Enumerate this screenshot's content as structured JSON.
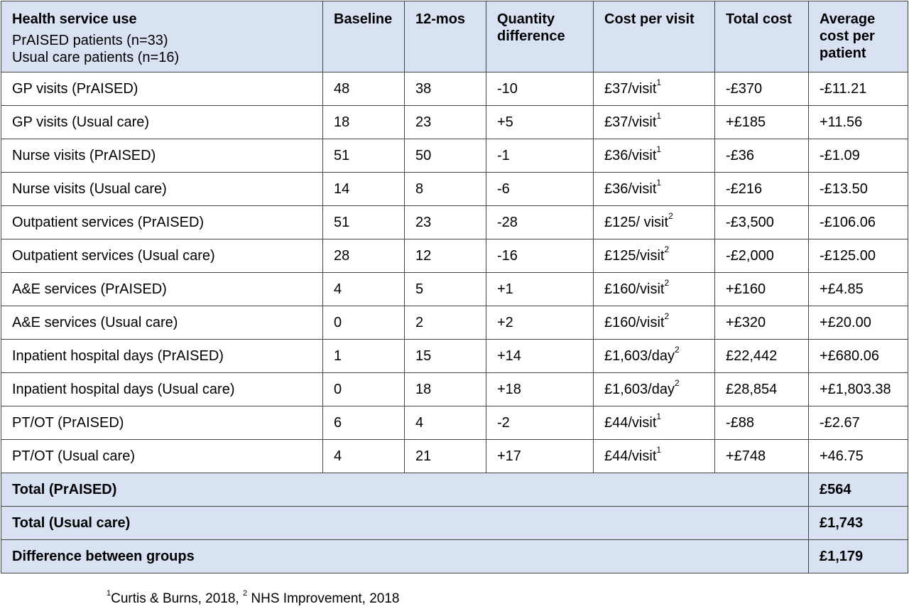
{
  "header": {
    "service_title": "Health service use",
    "service_sub1": "PrAISED patients (n=33)",
    "service_sub2": "Usual care patients (n=16)",
    "baseline": "Baseline",
    "months12": "12-mos",
    "qty_diff": "Quantity difference",
    "cost_per_visit": "Cost per visit",
    "total_cost": "Total cost",
    "avg_cost": "Average cost per patient"
  },
  "rows": [
    {
      "service": "GP visits (PrAISED)",
      "baseline": "48",
      "m12": "38",
      "diff": "-10",
      "cost": "£37/visit",
      "sup": "1",
      "total": "-£370",
      "avg": "-£11.21"
    },
    {
      "service": "GP visits (Usual care)",
      "baseline": "18",
      "m12": "23",
      "diff": "+5",
      "cost": "£37/visit",
      "sup": "1",
      "total": "+£185",
      "avg": "+11.56"
    },
    {
      "service": "Nurse visits (PrAISED)",
      "baseline": "51",
      "m12": "50",
      "diff": "-1",
      "cost": "£36/visit",
      "sup": "1",
      "total": "-£36",
      "avg": "-£1.09"
    },
    {
      "service": "Nurse visits (Usual care)",
      "baseline": "14",
      "m12": "8",
      "diff": "-6",
      "cost": "£36/visit",
      "sup": "1",
      "total": "-£216",
      "avg": "-£13.50"
    },
    {
      "service": "Outpatient services (PrAISED)",
      "baseline": "51",
      "m12": "23",
      "diff": "-28",
      "cost": "£125/ visit",
      "sup": "2",
      "total": "-£3,500",
      "avg": "-£106.06"
    },
    {
      "service": "Outpatient services (Usual care)",
      "baseline": "28",
      "m12": "12",
      "diff": "-16",
      "cost": "£125/visit",
      "sup": "2",
      "total": "-£2,000",
      "avg": "-£125.00"
    },
    {
      "service": "A&E services (PrAISED)",
      "baseline": "4",
      "m12": "5",
      "diff": "+1",
      "cost": "£160/visit",
      "sup": "2",
      "total": "+£160",
      "avg": "+£4.85"
    },
    {
      "service": "A&E services (Usual care)",
      "baseline": "0",
      "m12": "2",
      "diff": "+2",
      "cost": "£160/visit",
      "sup": "2",
      "total": "+£320",
      "avg": "+£20.00"
    },
    {
      "service": "Inpatient hospital days (PrAISED)",
      "baseline": "1",
      "m12": "15",
      "diff": "+14",
      "cost": "£1,603/day",
      "sup": "2",
      "total": "£22,442",
      "avg": "+£680.06"
    },
    {
      "service": "Inpatient hospital days (Usual care)",
      "baseline": "0",
      "m12": "18",
      "diff": "+18",
      "cost": "£1,603/day",
      "sup": "2",
      "total": "£28,854",
      "avg": "+£1,803.38"
    },
    {
      "service": "PT/OT (PrAISED)",
      "baseline": "6",
      "m12": "4",
      "diff": "-2",
      "cost": "£44/visit",
      "sup": "1",
      "total": "-£88",
      "avg": "-£2.67"
    },
    {
      "service": "PT/OT (Usual care)",
      "baseline": "4",
      "m12": "21",
      "diff": "+17",
      "cost": "£44/visit",
      "sup": "1",
      "total": "+£748",
      "avg": "+46.75"
    }
  ],
  "totals": [
    {
      "label": "Total (PrAISED)",
      "value": "£564"
    },
    {
      "label": "Total (Usual care)",
      "value": "£1,743"
    },
    {
      "label": "Difference between groups",
      "value": "£1,179"
    }
  ],
  "footnote": {
    "sup1": "1",
    "text1": "Curtis & Burns, 2018, ",
    "sup2": "2",
    "text2": " NHS Improvement, 2018"
  }
}
